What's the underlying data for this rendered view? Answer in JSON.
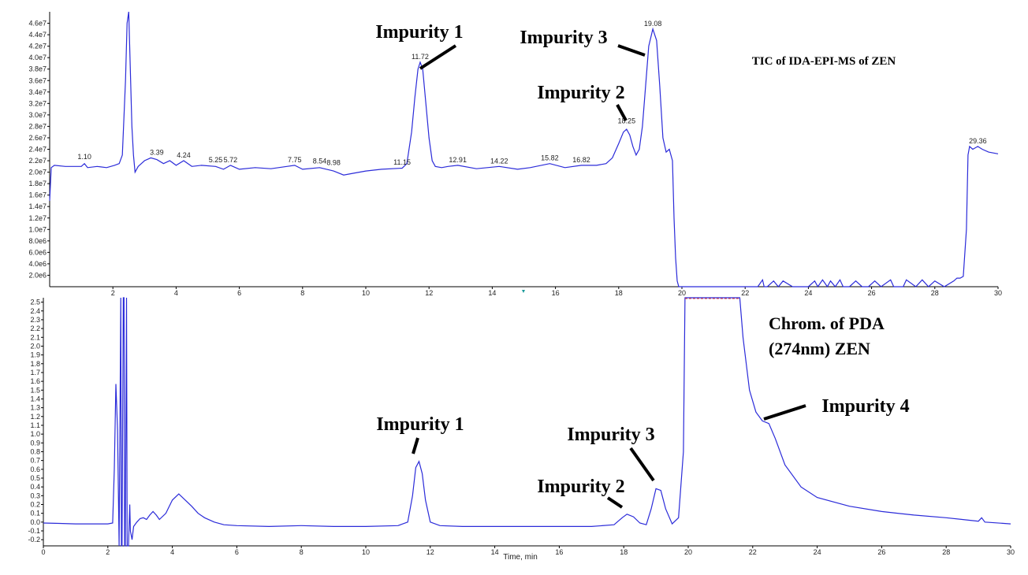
{
  "chart_data": [
    {
      "type": "line",
      "title": "TIC of IDA-EPI-MS of ZEN",
      "xlabel": "",
      "ylabel": "",
      "xlim": [
        0,
        30
      ],
      "ylim": [
        0,
        48000000.0
      ],
      "x_ticks": [
        "2",
        "4",
        "6",
        "8",
        "10",
        "12",
        "14",
        "16",
        "18",
        "20",
        "22",
        "24",
        "26",
        "28",
        "30"
      ],
      "y_ticks": [
        "2.0e6",
        "4.0e6",
        "6.0e6",
        "8.0e6",
        "1.0e7",
        "1.2e7",
        "1.4e7",
        "1.6e7",
        "1.8e7",
        "2.0e7",
        "2.2e7",
        "2.4e7",
        "2.6e7",
        "2.8e7",
        "3.0e7",
        "3.2e7",
        "3.4e7",
        "3.6e7",
        "3.8e7",
        "4.0e7",
        "4.2e7",
        "4.4e7",
        "4.6e7"
      ],
      "peak_labels": [
        {
          "x": 1.1,
          "y": 21700000.0,
          "text": "1.10"
        },
        {
          "x": 3.39,
          "y": 22500000.0,
          "text": "3.39"
        },
        {
          "x": 4.24,
          "y": 22000000.0,
          "text": "4.24"
        },
        {
          "x": 5.25,
          "y": 21200000.0,
          "text": "5.25"
        },
        {
          "x": 5.72,
          "y": 21200000.0,
          "text": "5.72"
        },
        {
          "x": 7.75,
          "y": 21200000.0,
          "text": "7.75"
        },
        {
          "x": 8.54,
          "y": 21000000.0,
          "text": "8.54"
        },
        {
          "x": 8.98,
          "y": 20700000.0,
          "text": "8.98"
        },
        {
          "x": 11.15,
          "y": 20800000.0,
          "text": "11.15"
        },
        {
          "x": 11.72,
          "y": 39200000.0,
          "text": "11.72"
        },
        {
          "x": 12.91,
          "y": 21200000.0,
          "text": "12.91"
        },
        {
          "x": 14.22,
          "y": 21000000.0,
          "text": "14.22"
        },
        {
          "x": 15.82,
          "y": 21500000.0,
          "text": "15.82"
        },
        {
          "x": 16.82,
          "y": 21200000.0,
          "text": "16.82"
        },
        {
          "x": 18.25,
          "y": 28000000.0,
          "text": "18.25"
        },
        {
          "x": 19.08,
          "y": 45000000.0,
          "text": "19.08"
        },
        {
          "x": 29.36,
          "y": 24500000.0,
          "text": "29.36"
        }
      ],
      "series": [
        {
          "x": [
            0,
            0.05,
            0.15,
            0.5,
            1.0,
            1.1,
            1.2,
            1.5,
            1.8,
            2.05,
            2.2,
            2.3,
            2.4,
            2.45,
            2.5,
            2.55,
            2.6,
            2.65,
            2.7,
            2.8,
            2.9,
            3.0,
            3.2,
            3.39,
            3.6,
            3.8,
            4.0,
            4.24,
            4.5,
            4.8,
            5.25,
            5.5,
            5.72,
            6.0,
            6.5,
            7.0,
            7.5,
            7.75,
            8.0,
            8.54,
            8.98,
            9.3,
            9.6,
            10.0,
            10.5,
            11.15,
            11.3,
            11.45,
            11.55,
            11.65,
            11.72,
            11.8,
            11.9,
            12.0,
            12.1,
            12.2,
            12.4,
            12.6,
            12.91,
            13.5,
            14.22,
            14.8,
            15.2,
            15.82,
            16.3,
            16.82,
            17.3,
            17.6,
            17.8,
            18.0,
            18.15,
            18.25,
            18.35,
            18.45,
            18.55,
            18.65,
            18.75,
            18.85,
            18.95,
            19.08,
            19.2,
            19.3,
            19.4,
            19.5,
            19.6,
            19.7,
            19.75,
            19.8,
            19.85,
            19.9,
            20.0,
            21.0,
            22.0,
            22.4,
            22.55,
            22.6,
            22.7,
            22.9,
            23.05,
            23.2,
            23.5,
            24.0,
            24.2,
            24.3,
            24.45,
            24.6,
            24.7,
            24.85,
            25.0,
            25.1,
            25.3,
            25.5,
            25.7,
            25.9,
            26.1,
            26.3,
            26.6,
            26.7,
            27.0,
            27.1,
            27.4,
            27.6,
            27.8,
            28.0,
            28.3,
            28.6,
            28.7,
            28.8,
            28.9,
            29.0,
            29.05,
            29.1,
            29.2,
            29.36,
            29.5,
            29.7,
            30.0
          ],
          "values": [
            15000000.0,
            20800000.0,
            21200000.0,
            21000000.0,
            21000000.0,
            21500000.0,
            20800000.0,
            21000000.0,
            20800000.0,
            21200000.0,
            21500000.0,
            23000000.0,
            36000000.0,
            46000000.0,
            48000000.0,
            38000000.0,
            28000000.0,
            23000000.0,
            20000000.0,
            21000000.0,
            21500000.0,
            22000000.0,
            22500000.0,
            22200000.0,
            21500000.0,
            22000000.0,
            21200000.0,
            22000000.0,
            21000000.0,
            21200000.0,
            21000000.0,
            20500000.0,
            21200000.0,
            20500000.0,
            20800000.0,
            20600000.0,
            21000000.0,
            21200000.0,
            20500000.0,
            20800000.0,
            20200000.0,
            19500000.0,
            19800000.0,
            20200000.0,
            20500000.0,
            20700000.0,
            21500000.0,
            27000000.0,
            33000000.0,
            38000000.0,
            39200000.0,
            38000000.0,
            32000000.0,
            26000000.0,
            22000000.0,
            21000000.0,
            20800000.0,
            21000000.0,
            21200000.0,
            20600000.0,
            21000000.0,
            20500000.0,
            20800000.0,
            21500000.0,
            20800000.0,
            21200000.0,
            21200000.0,
            21500000.0,
            22500000.0,
            25000000.0,
            27000000.0,
            27500000.0,
            26500000.0,
            24500000.0,
            23000000.0,
            24000000.0,
            28000000.0,
            35000000.0,
            42000000.0,
            45000000.0,
            43000000.0,
            35000000.0,
            26000000.0,
            23500000.0,
            24000000.0,
            22000000.0,
            12000000.0,
            5000000.0,
            1000000.0,
            0,
            0,
            0,
            0,
            0,
            1200000.0,
            0,
            0,
            1000000.0,
            0,
            1000000.0,
            0,
            0,
            1000000.0,
            0,
            1200000.0,
            0,
            1000000.0,
            0,
            1200000.0,
            0,
            0,
            1000000.0,
            0,
            0,
            1000000.0,
            0,
            1200000.0,
            0,
            0,
            1200000.0,
            0,
            1200000.0,
            0,
            1000000.0,
            0,
            1000000.0,
            1500000.0,
            1500000.0,
            1800000.0,
            10000000.0,
            23000000.0,
            24500000.0,
            24000000.0,
            24500000.0,
            24000000.0,
            23500000.0,
            23200000.0
          ]
        }
      ]
    },
    {
      "type": "line",
      "title": "Chrom. of PDA (274nm) ZEN",
      "title_lines": [
        "Chrom. of PDA",
        "(274nm) ZEN"
      ],
      "xlabel": "Time, min",
      "ylabel": "",
      "xlim": [
        0,
        30
      ],
      "ylim": [
        -0.27,
        2.55
      ],
      "x_ticks": [
        "0",
        "2",
        "4",
        "6",
        "8",
        "10",
        "12",
        "14",
        "16",
        "18",
        "20",
        "22",
        "24",
        "26",
        "28",
        "30"
      ],
      "y_ticks": [
        "-0.2",
        "-0.1",
        "0.0",
        "0.1",
        "0.2",
        "0.3",
        "0.4",
        "0.5",
        "0.6",
        "0.7",
        "0.8",
        "0.9",
        "1.0",
        "1.1",
        "1.2",
        "1.3",
        "1.4",
        "1.5",
        "1.6",
        "1.7",
        "1.8",
        "1.9",
        "2.0",
        "2.1",
        "2.2",
        "2.3",
        "2.4",
        "2.5"
      ],
      "saturation_range": [
        19.9,
        21.6
      ],
      "series": [
        {
          "x": [
            0,
            0.5,
            1.0,
            1.5,
            2.0,
            2.15,
            2.2,
            2.25,
            2.3,
            2.35,
            2.4,
            2.42,
            2.44,
            2.48,
            2.5,
            2.52,
            2.54,
            2.58,
            2.6,
            2.62,
            2.64,
            2.68,
            2.7,
            2.75,
            2.8,
            2.9,
            3.0,
            3.1,
            3.2,
            3.3,
            3.4,
            3.5,
            3.6,
            3.8,
            4.0,
            4.2,
            4.4,
            4.6,
            4.8,
            5.0,
            5.3,
            5.6,
            6.0,
            7.0,
            8.0,
            9.0,
            10.0,
            11.0,
            11.3,
            11.45,
            11.55,
            11.65,
            11.75,
            11.85,
            12.0,
            12.3,
            13.0,
            14.0,
            15.0,
            16.0,
            17.0,
            17.7,
            17.95,
            18.1,
            18.3,
            18.5,
            18.7,
            18.85,
            19.0,
            19.15,
            19.3,
            19.5,
            19.7,
            19.85,
            19.9,
            21.6,
            21.7,
            21.9,
            22.1,
            22.3,
            22.5,
            22.7,
            23.0,
            23.5,
            24.0,
            25.0,
            26.0,
            27.0,
            28.0,
            28.5,
            29.0,
            29.1,
            29.2,
            30.0
          ],
          "values": [
            -0.01,
            -0.015,
            -0.02,
            -0.02,
            -0.02,
            -0.01,
            0.6,
            1.57,
            1.05,
            -0.27,
            2.55,
            -0.27,
            -0.27,
            2.55,
            2.55,
            -0.27,
            -0.27,
            2.55,
            -0.27,
            -0.27,
            -0.27,
            0.2,
            -0.1,
            -0.2,
            -0.05,
            0.0,
            0.04,
            0.05,
            0.03,
            0.08,
            0.12,
            0.08,
            0.03,
            0.1,
            0.25,
            0.32,
            0.25,
            0.18,
            0.1,
            0.05,
            0.0,
            -0.03,
            -0.04,
            -0.05,
            -0.04,
            -0.05,
            -0.05,
            -0.04,
            0.0,
            0.3,
            0.62,
            0.69,
            0.55,
            0.25,
            0.0,
            -0.04,
            -0.05,
            -0.05,
            -0.05,
            -0.05,
            -0.05,
            -0.03,
            0.05,
            0.09,
            0.06,
            -0.01,
            -0.03,
            0.15,
            0.38,
            0.36,
            0.15,
            -0.02,
            0.05,
            0.8,
            2.55,
            2.55,
            2.1,
            1.5,
            1.25,
            1.15,
            1.12,
            0.95,
            0.65,
            0.4,
            0.28,
            0.18,
            0.12,
            0.08,
            0.05,
            0.03,
            0.01,
            0.05,
            0.0,
            -0.02
          ]
        }
      ]
    }
  ],
  "annotations": {
    "top": [
      {
        "text": "Impurity 1",
        "x": 11.72
      },
      {
        "text": "Impurity 3",
        "x": 19.08
      },
      {
        "text": "Impurity 2",
        "x": 18.25
      }
    ],
    "bottom": [
      {
        "text": "Impurity 1",
        "x": 11.6
      },
      {
        "text": "Impurity 3",
        "x": 18.9
      },
      {
        "text": "Impurity 2",
        "x": 18.1
      },
      {
        "text": "Impurity 4",
        "x": 22.4
      }
    ]
  },
  "colors": {
    "trace": "#2b2bd9",
    "axis": "#000000",
    "saturation_line": "#e03030",
    "marker": "#1a9a9a"
  }
}
